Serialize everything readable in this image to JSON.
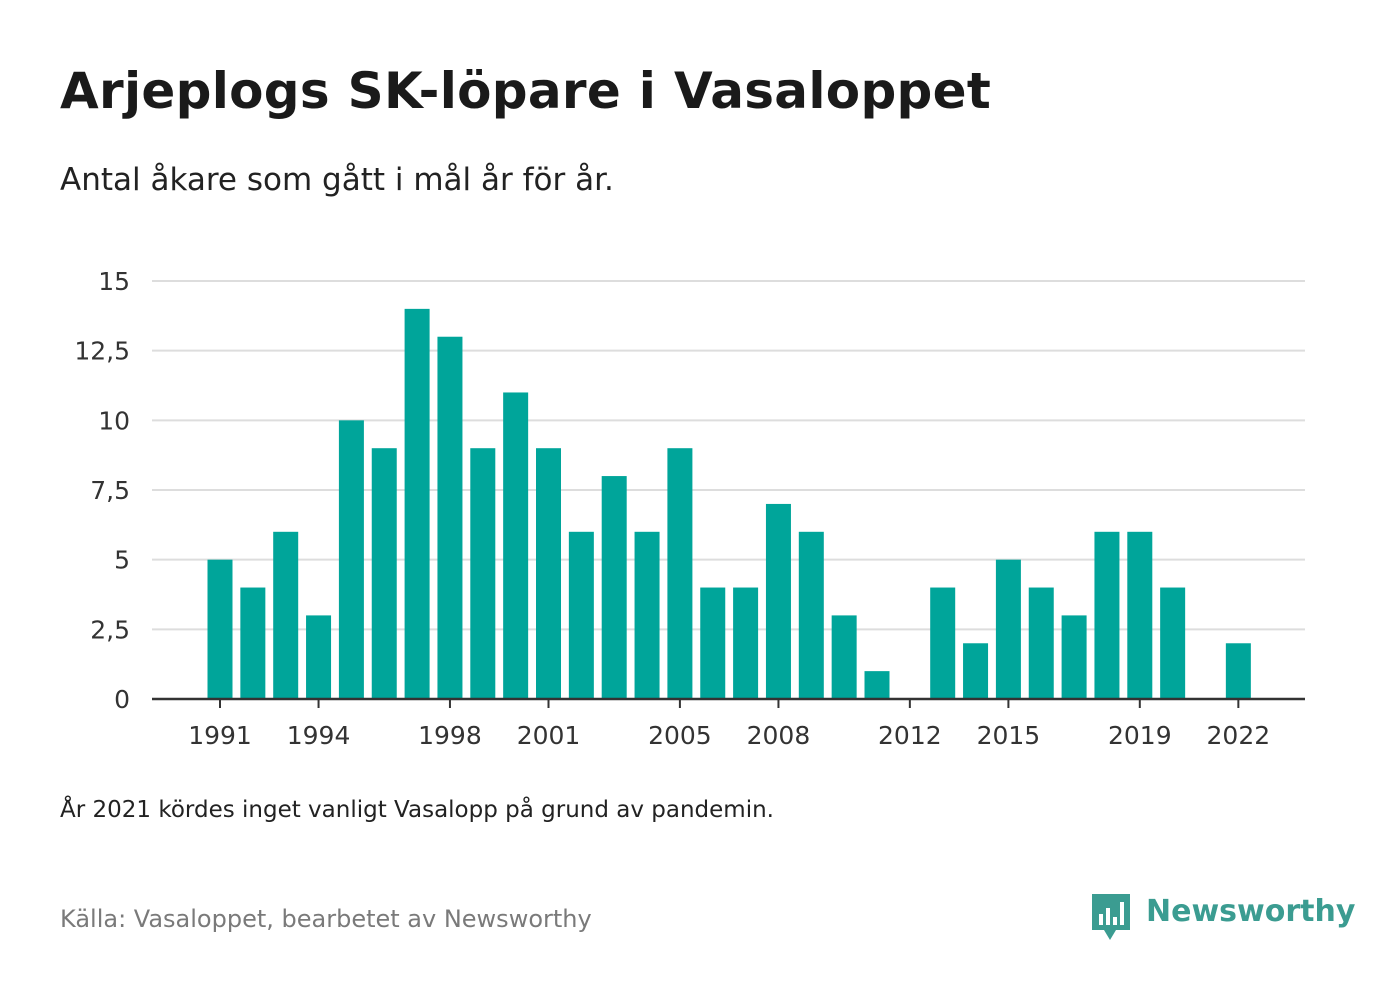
{
  "title": "Arjeplogs SK-löpare i Vasaloppet",
  "subtitle": "Antal åkare som gått i mål år för år.",
  "note": "År 2021 kördes inget vanligt Vasalopp på grund av pandemin.",
  "source": "Källa: Vasaloppet, bearbetet av Newsworthy",
  "brand": {
    "name": "Newsworthy",
    "icon": "newsworthy-logo-icon",
    "color": "#3b9c91"
  },
  "chart_data": {
    "type": "bar",
    "x": [
      1991,
      1992,
      1993,
      1994,
      1995,
      1996,
      1997,
      1998,
      1999,
      2000,
      2001,
      2002,
      2003,
      2004,
      2005,
      2006,
      2007,
      2008,
      2009,
      2010,
      2011,
      2012,
      2013,
      2014,
      2015,
      2016,
      2017,
      2018,
      2019,
      2020,
      2021,
      2022
    ],
    "values": [
      5,
      4,
      6,
      3,
      10,
      9,
      14,
      13,
      9,
      11,
      9,
      6,
      8,
      6,
      9,
      4,
      4,
      7,
      6,
      3,
      1,
      0,
      4,
      2,
      5,
      4,
      3,
      6,
      6,
      4,
      0,
      2
    ],
    "xticks": [
      "1991",
      "1994",
      "1998",
      "2001",
      "2005",
      "2008",
      "2012",
      "2015",
      "2019",
      "2022"
    ],
    "ylim": [
      0,
      15
    ],
    "yticks": [
      "0",
      "2,5",
      "5",
      "7,5",
      "10",
      "12,5",
      "15"
    ],
    "ytick_values": [
      0,
      2.5,
      5,
      7.5,
      10,
      12.5,
      15
    ],
    "bar_color": "#00a59a",
    "grid": true
  }
}
